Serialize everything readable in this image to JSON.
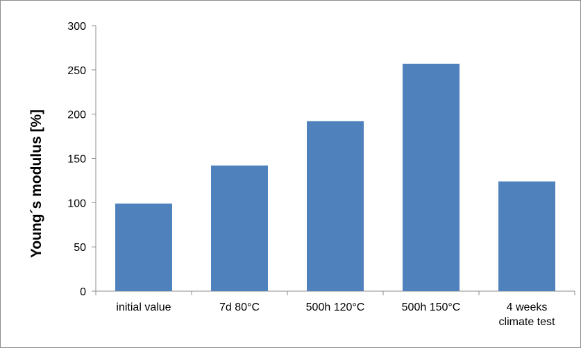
{
  "chart_data": {
    "type": "bar",
    "title": "",
    "xlabel": "",
    "ylabel": "Young´s modulus [%]",
    "categories": [
      [
        "initial value"
      ],
      [
        "7d 80°C"
      ],
      [
        "500h 120°C"
      ],
      [
        "500h 150°C"
      ],
      [
        "4 weeks",
        "climate test"
      ]
    ],
    "values": [
      99,
      142,
      192,
      257,
      124
    ],
    "ylim": [
      0,
      300
    ],
    "yticks": [
      0,
      50,
      100,
      150,
      200,
      250,
      300
    ],
    "grid": false,
    "legend": "none",
    "bar_color": "#4f81bd"
  }
}
